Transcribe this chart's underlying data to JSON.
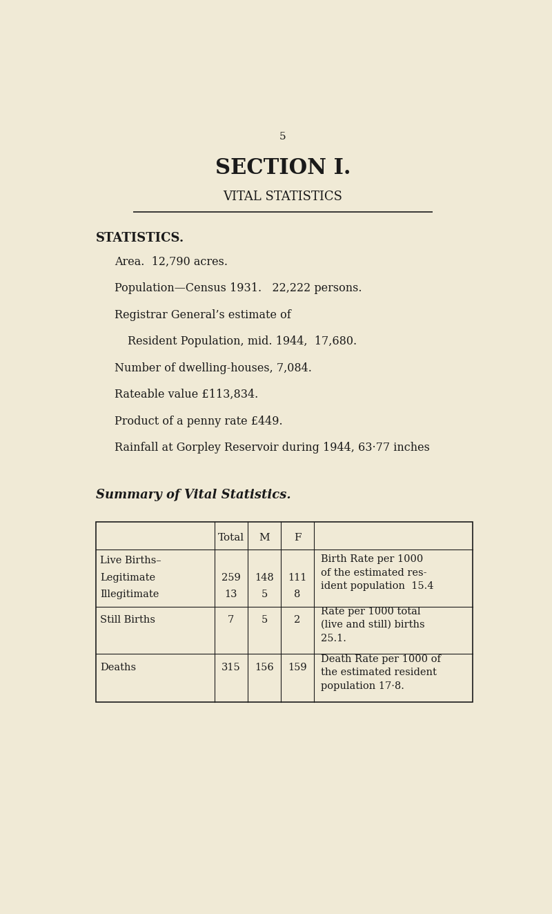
{
  "bg_color": "#f0ead6",
  "page_number": "5",
  "section_title": "SECTION I.",
  "section_subtitle": "VITAL STATISTICS",
  "stats_header": "STATISTICS.",
  "stat_lines": [
    "Area.  12,790 acres.",
    "Population—Census 1931.   22,222 persons.",
    "Registrar General’s estimate of",
    "Resident Population, mid. 1944,  17,680.",
    "Number of dwelling-houses, 7,084.",
    "Rateable value £113,834.",
    "Product of a penny rate £449.",
    "Rainfall at Gorpley Reservoir during 1944, 63·77 inches"
  ],
  "stat_indent": [
    false,
    false,
    false,
    true,
    false,
    false,
    false,
    false
  ],
  "table_header": "Summary of Vital Statistics.",
  "col_headers": [
    "Total",
    "M",
    "F"
  ],
  "row1_labels": [
    "Live Births–",
    "Legitimate",
    "Illegitimate"
  ],
  "row1_total": [
    "",
    "259",
    "13"
  ],
  "row1_m": [
    "",
    "148",
    "5"
  ],
  "row1_f": [
    "",
    "111",
    "8"
  ],
  "row1_note": "Birth Rate per 1000\nof the estimated res-\nident population  15.4",
  "row2_labels": [
    "Still Births"
  ],
  "row2_total": "7",
  "row2_m": "5",
  "row2_f": "2",
  "row2_note": "Rate per 1000 total\n(live and still) births\n25.1.",
  "row3_labels": [
    "Deaths"
  ],
  "row3_total": "315",
  "row3_m": "156",
  "row3_f": "159",
  "row3_note": "Death Rate per 1000 of\nthe estimated resident\npopulation 17·8."
}
